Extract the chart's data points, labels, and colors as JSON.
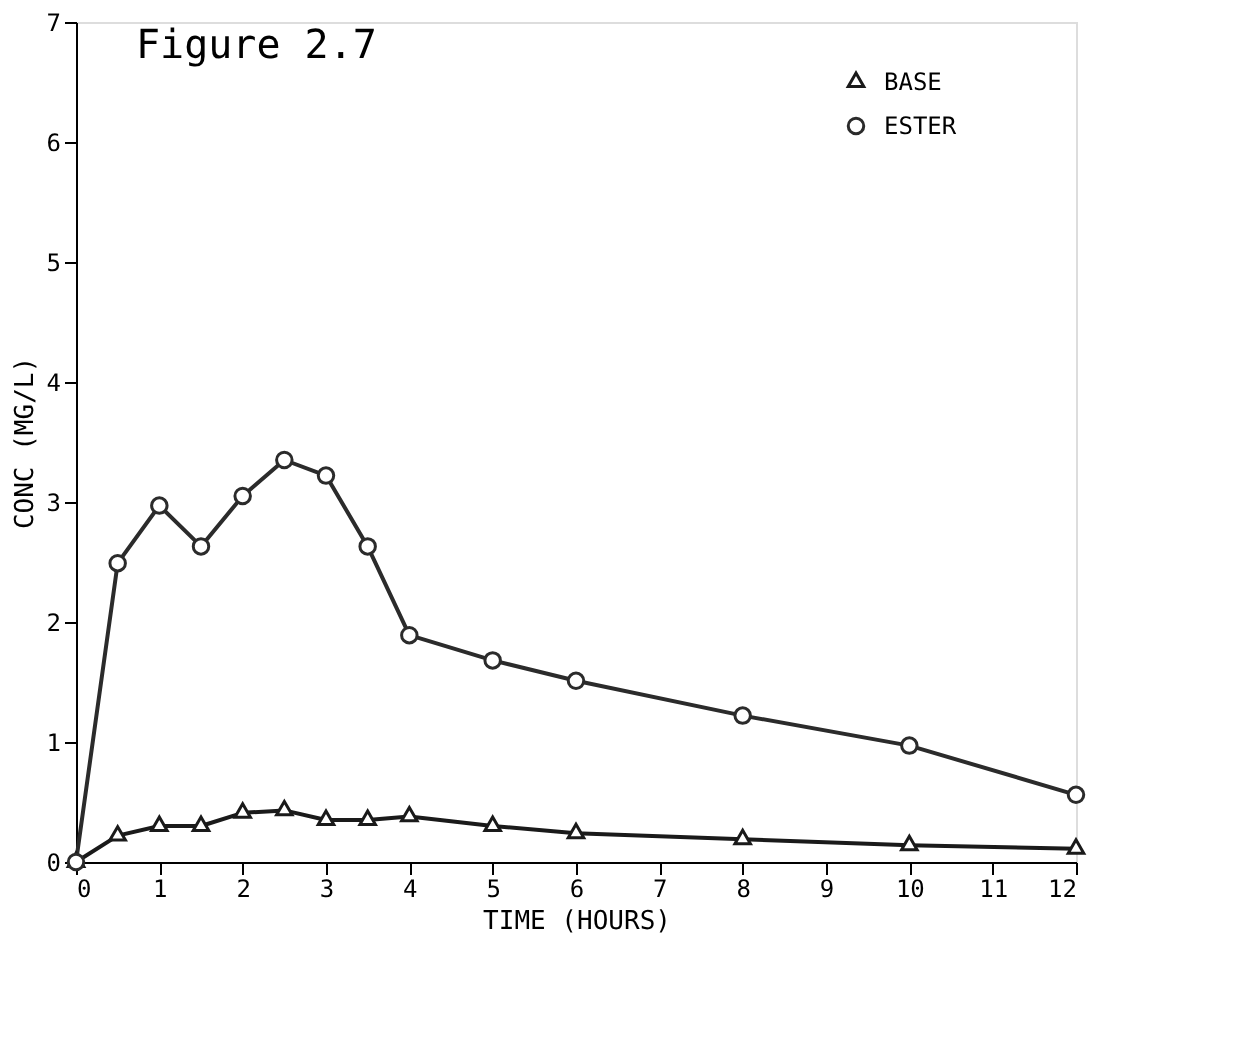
{
  "chart_data": {
    "type": "line",
    "title": "Figure 2.7",
    "xlabel": "TIME (HOURS)",
    "ylabel": "CONC (MG/L)",
    "xlim": [
      0,
      12
    ],
    "xticks": [
      0,
      1,
      2,
      3,
      4,
      5,
      6,
      7,
      8,
      9,
      10,
      11,
      12
    ],
    "ylim": [
      0,
      7
    ],
    "yticks": [
      0,
      1,
      2,
      3,
      4,
      5,
      6,
      7
    ],
    "x": [
      0,
      0.5,
      1,
      1.5,
      2,
      2.5,
      3,
      3.5,
      4,
      5,
      6,
      8,
      10,
      12
    ],
    "series": [
      {
        "name": "BASE",
        "color": "#1a1a1a",
        "marker": "triangle",
        "values": [
          0,
          0.22,
          0.3,
          0.3,
          0.41,
          0.43,
          0.35,
          0.35,
          0.38,
          0.3,
          0.24,
          0.19,
          0.14,
          0.11
        ]
      },
      {
        "name": "ESTER",
        "color": "#2b2b2b",
        "marker": "circle",
        "values": [
          0,
          2.49,
          2.97,
          2.63,
          3.05,
          3.35,
          3.22,
          2.63,
          1.89,
          1.68,
          1.51,
          1.22,
          0.97,
          0.56
        ]
      }
    ],
    "grid": false,
    "legend": "top right",
    "line_style": "solid"
  }
}
